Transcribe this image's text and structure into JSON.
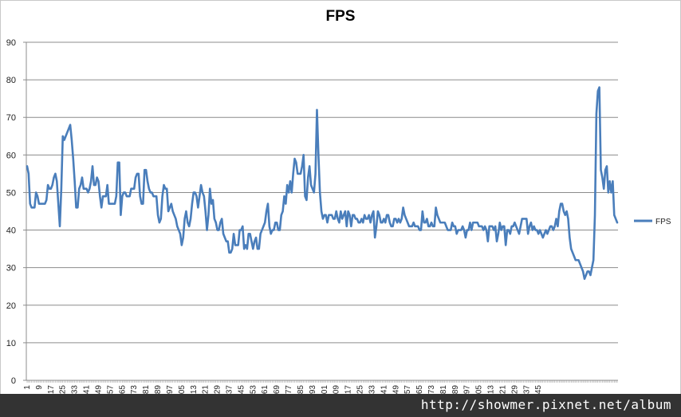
{
  "chart_data": {
    "type": "line",
    "title": "FPS",
    "xlabel": "",
    "ylabel": "",
    "ylim": [
      0,
      90
    ],
    "yticks": [
      0,
      10,
      20,
      30,
      40,
      50,
      60,
      70,
      80,
      90
    ],
    "grid": "horizontal",
    "legend_position": "right",
    "x_tick_labels": [
      "1",
      "9",
      "17",
      "25",
      "33",
      "41",
      "49",
      "57",
      "65",
      "73",
      "81",
      "89",
      "97",
      "105",
      "113",
      "121",
      "129",
      "137",
      "145",
      "153",
      "161",
      "169",
      "177",
      "185",
      "193",
      "201",
      "209",
      "217",
      "225",
      "233",
      "241",
      "249",
      "257",
      "265",
      "273",
      "281",
      "289",
      "297",
      "305",
      "313",
      "321",
      "329",
      "337",
      "345"
    ],
    "series": [
      {
        "name": "FPS",
        "color": "#4a7ebb",
        "values": [
          57,
          55,
          47,
          46,
          46,
          46,
          50,
          49,
          47,
          47,
          47,
          47,
          47,
          48,
          52,
          51,
          51,
          52,
          54,
          55,
          53,
          47,
          41,
          51,
          65,
          64,
          65,
          66,
          67,
          68,
          64,
          59,
          53,
          46,
          46,
          51,
          52,
          54,
          51,
          51,
          51,
          50,
          51,
          53,
          57,
          52,
          52,
          54,
          53,
          49,
          46,
          49,
          49,
          49,
          52,
          47,
          47,
          47,
          47,
          47,
          49,
          58,
          58,
          44,
          49,
          50,
          50,
          49,
          49,
          49,
          51,
          51,
          51,
          54,
          55,
          55,
          49,
          47,
          47,
          56,
          56,
          53,
          51,
          50,
          50,
          49,
          49,
          49,
          44,
          42,
          43,
          49,
          52,
          51,
          51,
          45,
          46,
          47,
          45,
          44,
          43,
          41,
          40,
          39,
          36,
          38,
          43,
          45,
          42,
          41,
          43,
          47,
          50,
          50,
          49,
          46,
          49,
          52,
          50,
          49,
          45,
          40,
          44,
          51,
          47,
          48,
          43,
          42,
          40,
          40,
          42,
          43,
          39,
          38,
          37,
          37,
          34,
          34,
          35,
          39,
          36,
          36,
          36,
          40,
          40,
          41,
          35,
          36,
          35,
          39,
          39,
          37,
          35,
          37,
          38,
          35,
          35,
          39,
          40,
          41,
          42,
          45,
          47,
          41,
          39,
          40,
          40,
          42,
          42,
          40,
          40,
          44,
          45,
          49,
          47,
          52,
          50,
          53,
          50,
          55,
          59,
          58,
          55,
          55,
          55,
          57,
          60,
          49,
          48,
          54,
          57,
          52,
          51,
          50,
          55,
          72,
          60,
          50,
          45,
          43,
          44,
          44,
          42,
          44,
          44,
          44,
          43,
          43,
          45,
          43,
          42,
          45,
          43,
          44,
          45,
          41,
          45,
          44,
          41,
          44,
          44,
          43,
          43,
          42,
          42,
          43,
          42,
          44,
          43,
          43,
          44,
          42,
          44,
          45,
          38,
          41,
          45,
          44,
          42,
          42,
          43,
          42,
          44,
          44,
          42,
          41,
          41,
          43,
          43,
          42,
          43,
          42,
          43,
          46,
          44,
          43,
          42,
          41,
          41,
          41,
          42,
          41,
          41,
          41,
          40,
          40,
          45,
          42,
          42,
          43,
          41,
          41,
          42,
          41,
          41,
          46,
          44,
          43,
          42,
          42,
          42,
          42,
          41,
          40,
          40,
          40,
          42,
          41,
          41,
          39,
          40,
          40,
          40,
          41,
          40,
          38,
          40,
          40,
          42,
          40,
          42,
          42,
          42,
          42,
          41,
          41,
          41,
          40,
          41,
          40,
          37,
          41,
          41,
          41,
          40,
          41,
          37,
          39,
          42,
          40,
          41,
          41,
          36,
          40,
          40,
          39,
          41,
          41,
          42,
          41,
          40,
          39,
          41,
          43,
          43,
          43,
          43,
          39,
          41,
          42,
          40,
          41,
          40,
          40,
          39,
          40,
          39,
          38,
          39,
          40,
          39,
          40,
          41,
          41,
          40,
          41,
          43,
          41,
          45,
          47,
          47,
          45,
          44,
          45,
          43,
          38,
          35,
          34,
          33,
          32,
          32,
          32,
          31,
          30,
          29,
          27,
          28,
          29,
          29,
          28,
          30,
          32,
          44,
          71,
          77,
          78,
          56,
          54,
          51,
          56,
          57,
          50,
          53,
          50,
          53,
          44,
          43,
          42
        ]
      }
    ]
  },
  "watermark": "http://showmer.pixnet.net/album"
}
